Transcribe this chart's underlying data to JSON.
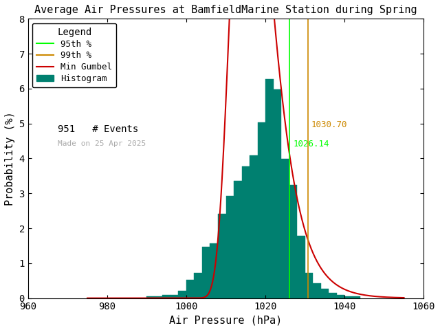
{
  "title": "Average Air Pressures at BamfieldMarine Station during Spring",
  "xlabel": "Air Pressure (hPa)",
  "ylabel": "Probability (%)",
  "xlim": [
    960,
    1060
  ],
  "ylim": [
    0,
    8
  ],
  "xticks": [
    960,
    980,
    1000,
    1020,
    1040,
    1060
  ],
  "yticks": [
    0,
    1,
    2,
    3,
    4,
    5,
    6,
    7,
    8
  ],
  "bin_width": 2,
  "n_events": 951,
  "percentile_95": 1026.14,
  "percentile_99": 1030.7,
  "percentile_95_color": "#00ff00",
  "percentile_99_color": "#cc8800",
  "percentile_95_label": "1026.14",
  "percentile_99_label": "1030.70",
  "hist_color": "#008070",
  "hist_edge_color": "#008070",
  "gumbel_color": "#cc0000",
  "legend_title": "Legend",
  "made_on_text": "Made on 25 Apr 2025",
  "made_on_color": "#aaaaaa",
  "background_color": "white",
  "bar_heights": [
    [
      990,
      0.05
    ],
    [
      992,
      0.05
    ],
    [
      994,
      0.1
    ],
    [
      996,
      0.1
    ],
    [
      998,
      0.21
    ],
    [
      1000,
      0.52
    ],
    [
      1002,
      0.73
    ],
    [
      1004,
      1.47
    ],
    [
      1006,
      1.57
    ],
    [
      1008,
      2.41
    ],
    [
      1010,
      2.93
    ],
    [
      1012,
      3.35
    ],
    [
      1014,
      3.77
    ],
    [
      1016,
      4.08
    ],
    [
      1018,
      5.03
    ],
    [
      1020,
      6.28
    ],
    [
      1022,
      5.97
    ],
    [
      1024,
      3.98
    ],
    [
      1026,
      3.25
    ],
    [
      1028,
      1.78
    ],
    [
      1030,
      0.73
    ],
    [
      1032,
      0.42
    ],
    [
      1034,
      0.26
    ],
    [
      1036,
      0.16
    ],
    [
      1038,
      0.1
    ],
    [
      1040,
      0.05
    ],
    [
      1042,
      0.05
    ]
  ],
  "gumbel_mu": 1015.5,
  "gumbel_beta": 4.8,
  "title_fontsize": 11,
  "axis_fontsize": 11,
  "tick_fontsize": 10,
  "legend_fontsize": 9,
  "events_fontsize": 10,
  "madeon_fontsize": 8
}
